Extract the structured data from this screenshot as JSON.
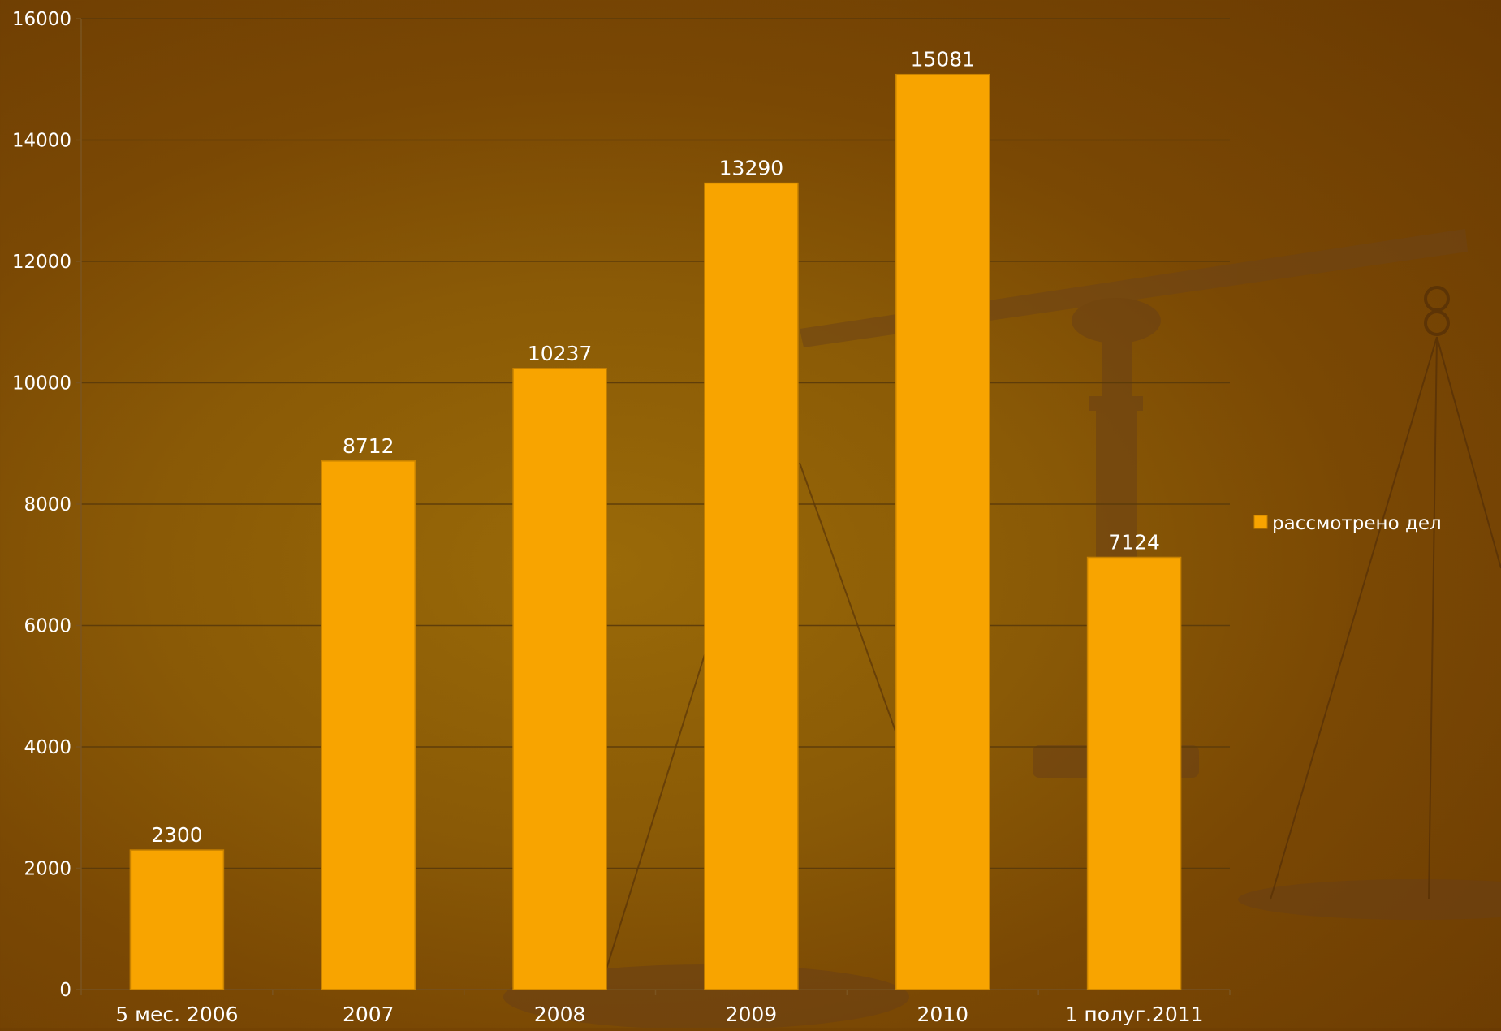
{
  "chart_data": {
    "type": "bar",
    "categories": [
      "5 мес. 2006",
      "2007",
      "2008",
      "2009",
      "2010",
      "1 полуг.2011"
    ],
    "series": [
      {
        "name": "рассмотрено дел",
        "values": [
          2300,
          8712,
          10237,
          13290,
          15081,
          7124
        ],
        "color": "#f8a400"
      }
    ],
    "ylim": [
      0,
      16000
    ],
    "yticks": [
      0,
      2000,
      4000,
      6000,
      8000,
      10000,
      12000,
      14000,
      16000
    ],
    "grid": true,
    "legend_position": "right"
  }
}
